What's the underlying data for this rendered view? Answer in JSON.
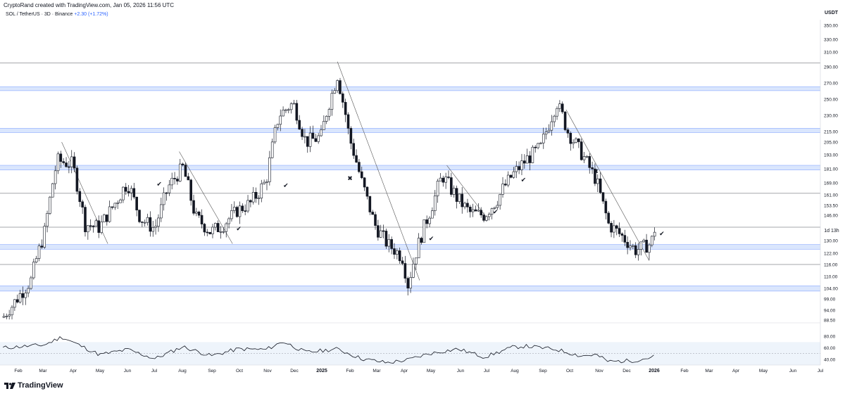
{
  "header": {
    "created_by": "CryptoRand created with TradingView.com, Jan 05, 2026 11:56 UTC",
    "symbol_line": "SOL / TetherUS · 3D · Binance",
    "change": "+2.30 (+1.72%)",
    "currency": "USDT",
    "countdown": "1d 13h"
  },
  "branding": {
    "logo_text": "TradingView"
  },
  "colors": {
    "candle": "#131722",
    "zone": "#2962ff",
    "zone_fill": "#bbd2fb",
    "line": "#131722",
    "trendline": "#555555",
    "rsi": "#131722",
    "rsi_band": "#eef4fb"
  },
  "chart_data": [
    {
      "type": "candlestick",
      "symbol": "SOL / TetherUS",
      "timeframe": "3D",
      "exchange": "Binance",
      "y_axis_ticks": [
        "350.00",
        "330.00",
        "310.00",
        "290.00",
        "270.00",
        "250.00",
        "230.00",
        "215.00",
        "205.00",
        "193.00",
        "181.00",
        "169.00",
        "161.00",
        "153.50",
        "146.00",
        "138.00",
        "130.00",
        "122.00",
        "116.00",
        "110.00",
        "104.00",
        "99.00",
        "94.00",
        "88.50"
      ],
      "x_axis_ticks": [
        "Feb",
        "Mar",
        "Apr",
        "May",
        "Jun",
        "Jul",
        "Aug",
        "Sep",
        "Oct",
        "Nov",
        "Dec",
        "2025",
        "Feb",
        "Mar",
        "Apr",
        "May",
        "Jun",
        "Jul",
        "Aug",
        "Sep",
        "Oct",
        "Nov",
        "Dec",
        "2026",
        "Feb",
        "Mar",
        "Apr",
        "May",
        "Jun",
        "Jul"
      ],
      "ylim": [
        85,
        360
      ],
      "last_price": 137,
      "horizontal_levels": [
        295,
        162,
        138,
        116
      ],
      "zones": [
        {
          "center": 263,
          "half_width": 2.5
        },
        {
          "center": 216,
          "half_width": 2
        },
        {
          "center": 182,
          "half_width": 2
        },
        {
          "center": 126,
          "half_width": 1.5
        },
        {
          "center": 104,
          "half_width": 1.3
        }
      ],
      "trendlines": [
        {
          "from": [
            "2024-03-20",
            205
          ],
          "to": [
            "2024-05-10",
            128
          ]
        },
        {
          "from": [
            "2024-07-28",
            196
          ],
          "to": [
            "2024-09-25",
            128
          ]
        },
        {
          "from": [
            "2025-01-19",
            297
          ],
          "to": [
            "2025-04-20",
            108
          ]
        },
        {
          "from": [
            "2025-05-20",
            184
          ],
          "to": [
            "2025-07-05",
            143
          ]
        },
        {
          "from": [
            "2025-09-29",
            237
          ],
          "to": [
            "2025-12-30",
            118
          ]
        }
      ],
      "markers": [
        {
          "date": "2024-07-03",
          "price": 167,
          "symbol": "✔"
        },
        {
          "date": "2024-09-29",
          "price": 136,
          "symbol": "✔"
        },
        {
          "date": "2024-11-20",
          "price": 166,
          "symbol": "✔"
        },
        {
          "date": "2025-01-30",
          "price": 171,
          "symbol": "✖"
        },
        {
          "date": "2025-04-30",
          "price": 130,
          "symbol": "✔"
        },
        {
          "date": "2025-07-10",
          "price": 147,
          "symbol": "✔"
        },
        {
          "date": "2025-08-10",
          "price": 170,
          "symbol": "✔"
        },
        {
          "date": "2025-10-29",
          "price": 177,
          "symbol": "✖"
        },
        {
          "date": "2026-01-10",
          "price": 133,
          "symbol": "✔"
        }
      ],
      "closes": [
        [
          "2024-01-15",
          90
        ],
        [
          "2024-02-01",
          100
        ],
        [
          "2024-02-15",
          108
        ],
        [
          "2024-03-01",
          135
        ],
        [
          "2024-03-15",
          188
        ],
        [
          "2024-04-01",
          185
        ],
        [
          "2024-04-15",
          140
        ],
        [
          "2024-05-01",
          138
        ],
        [
          "2024-05-15",
          152
        ],
        [
          "2024-06-01",
          170
        ],
        [
          "2024-06-15",
          144
        ],
        [
          "2024-07-01",
          137
        ],
        [
          "2024-07-15",
          165
        ],
        [
          "2024-08-01",
          182
        ],
        [
          "2024-08-15",
          145
        ],
        [
          "2024-09-01",
          135
        ],
        [
          "2024-09-15",
          140
        ],
        [
          "2024-10-01",
          150
        ],
        [
          "2024-10-15",
          155
        ],
        [
          "2024-11-01",
          170
        ],
        [
          "2024-11-15",
          230
        ],
        [
          "2024-12-01",
          245
        ],
        [
          "2024-12-15",
          205
        ],
        [
          "2025-01-01",
          210
        ],
        [
          "2025-01-19",
          280
        ],
        [
          "2025-02-01",
          210
        ],
        [
          "2025-02-15",
          170
        ],
        [
          "2025-03-01",
          140
        ],
        [
          "2025-03-15",
          128
        ],
        [
          "2025-04-01",
          120
        ],
        [
          "2025-04-07",
          106
        ],
        [
          "2025-04-20",
          130
        ],
        [
          "2025-05-01",
          148
        ],
        [
          "2025-05-15",
          175
        ],
        [
          "2025-06-01",
          158
        ],
        [
          "2025-06-15",
          148
        ],
        [
          "2025-07-01",
          146
        ],
        [
          "2025-07-15",
          158
        ],
        [
          "2025-08-01",
          176
        ],
        [
          "2025-08-15",
          188
        ],
        [
          "2025-09-01",
          200
        ],
        [
          "2025-09-19",
          245
        ],
        [
          "2025-10-01",
          215
        ],
        [
          "2025-10-15",
          196
        ],
        [
          "2025-11-01",
          172
        ],
        [
          "2025-11-15",
          140
        ],
        [
          "2025-12-01",
          132
        ],
        [
          "2025-12-15",
          124
        ],
        [
          "2026-01-01",
          128
        ],
        [
          "2026-01-05",
          137
        ]
      ]
    },
    {
      "type": "line",
      "name": "RSI",
      "y_axis_ticks": [
        "80.00",
        "60.00",
        "40.00"
      ],
      "ylim": [
        30,
        90
      ],
      "reference_levels": [
        70,
        50,
        30
      ],
      "x": [
        "2024-01-15",
        "2024-03-01",
        "2024-03-20",
        "2024-05-01",
        "2024-06-01",
        "2024-07-01",
        "2024-08-01",
        "2024-09-01",
        "2024-10-01",
        "2024-11-01",
        "2024-11-20",
        "2024-12-15",
        "2025-01-19",
        "2025-02-15",
        "2025-03-15",
        "2025-04-07",
        "2025-05-01",
        "2025-06-01",
        "2025-07-01",
        "2025-08-01",
        "2025-08-15",
        "2025-09-19",
        "2025-10-15",
        "2025-11-01",
        "2025-11-15",
        "2025-12-15",
        "2026-01-05"
      ],
      "values": [
        60,
        65,
        79,
        48,
        57,
        41,
        62,
        46,
        58,
        57,
        71,
        52,
        58,
        41,
        34,
        39,
        50,
        58,
        44,
        61,
        63,
        57,
        46,
        48,
        36,
        38,
        45
      ]
    }
  ]
}
